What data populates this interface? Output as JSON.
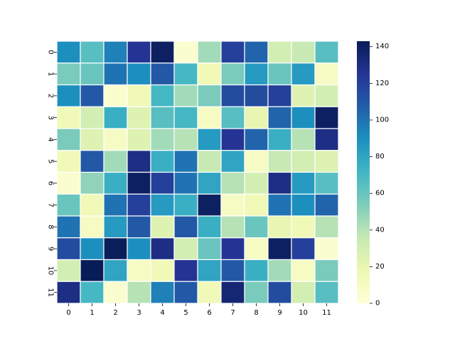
{
  "chart_data": {
    "type": "heatmap",
    "title": "",
    "xlabel": "",
    "ylabel": "",
    "x_categories": [
      "0",
      "1",
      "2",
      "3",
      "4",
      "5",
      "6",
      "7",
      "8",
      "9",
      "10",
      "11"
    ],
    "y_categories": [
      "0",
      "1",
      "2",
      "3",
      "4",
      "5",
      "6",
      "7",
      "8",
      "9",
      "10",
      "11"
    ],
    "values": [
      [
        90,
        65,
        95,
        125,
        140,
        5,
        45,
        120,
        105,
        30,
        35,
        65
      ],
      [
        55,
        60,
        100,
        90,
        110,
        70,
        15,
        55,
        85,
        60,
        85,
        10
      ],
      [
        90,
        110,
        5,
        15,
        70,
        45,
        55,
        115,
        115,
        120,
        25,
        30
      ],
      [
        15,
        30,
        75,
        25,
        65,
        70,
        10,
        65,
        20,
        105,
        90,
        140
      ],
      [
        55,
        25,
        10,
        25,
        45,
        40,
        85,
        125,
        105,
        75,
        40,
        130
      ],
      [
        15,
        110,
        45,
        130,
        75,
        100,
        35,
        80,
        10,
        35,
        30,
        25
      ],
      [
        5,
        50,
        75,
        140,
        120,
        100,
        80,
        40,
        30,
        130,
        85,
        65
      ],
      [
        60,
        15,
        100,
        120,
        85,
        75,
        140,
        10,
        15,
        100,
        90,
        105
      ],
      [
        100,
        10,
        85,
        110,
        25,
        110,
        75,
        40,
        60,
        20,
        15,
        40
      ],
      [
        115,
        90,
        142,
        90,
        130,
        30,
        60,
        125,
        10,
        140,
        120,
        5
      ],
      [
        30,
        143,
        80,
        10,
        15,
        125,
        80,
        110,
        75,
        45,
        10,
        55
      ],
      [
        130,
        70,
        5,
        40,
        95,
        110,
        15,
        135,
        55,
        115,
        30,
        65
      ]
    ],
    "colorbar": {
      "min": 0,
      "max": 143,
      "ticks": [
        0,
        20,
        40,
        60,
        80,
        100,
        120,
        140
      ],
      "colormap": "YlGnBu"
    },
    "cell_separator_color": "#ffffff"
  }
}
